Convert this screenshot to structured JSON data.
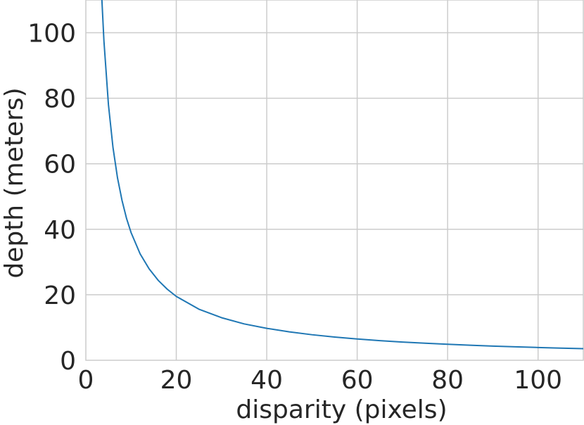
{
  "chart_data": {
    "type": "line",
    "title": "",
    "xlabel": "disparity (pixels)",
    "ylabel": "depth (meters)",
    "xlim": [
      0,
      110
    ],
    "ylim": [
      0,
      110
    ],
    "xticks": [
      0,
      20,
      40,
      60,
      80,
      100
    ],
    "yticks": [
      0,
      20,
      40,
      60,
      80,
      100
    ],
    "xtick_labels": [
      "0",
      "20",
      "40",
      "60",
      "80",
      "100"
    ],
    "ytick_labels": [
      "0",
      "20",
      "40",
      "60",
      "80",
      "100"
    ],
    "grid": true,
    "legend": "none",
    "series": [
      {
        "color": "#1f77b4",
        "x": [
          3.5,
          4,
          5,
          6,
          7,
          8,
          9,
          10,
          12,
          14,
          16,
          18,
          20,
          25,
          30,
          35,
          40,
          45,
          50,
          55,
          60,
          65,
          70,
          75,
          80,
          85,
          90,
          95,
          100,
          105,
          110
        ],
        "y": [
          111.4,
          97.5,
          78.0,
          65.0,
          55.7,
          48.8,
          43.3,
          39.0,
          32.5,
          27.9,
          24.4,
          21.7,
          19.5,
          15.6,
          13.0,
          11.1,
          9.75,
          8.67,
          7.8,
          7.09,
          6.5,
          6.0,
          5.57,
          5.2,
          4.88,
          4.59,
          4.33,
          4.11,
          3.9,
          3.71,
          3.55
        ]
      }
    ]
  }
}
